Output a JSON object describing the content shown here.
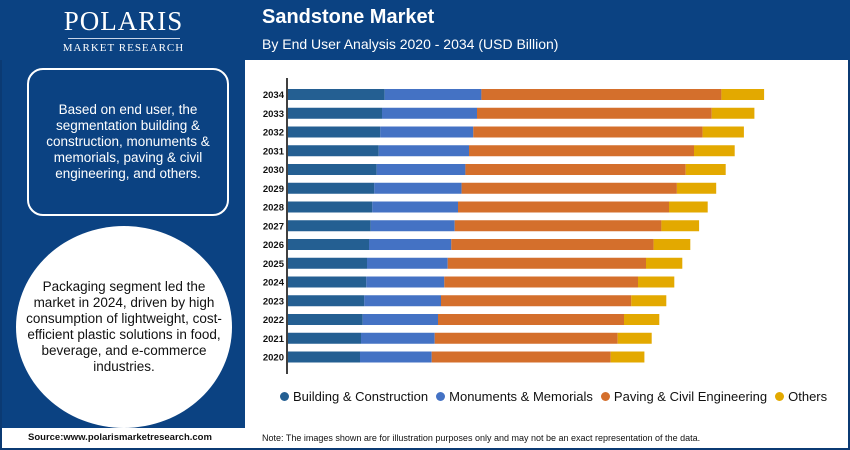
{
  "brand": {
    "name": "POLARIS",
    "sub": "MARKET RESEARCH"
  },
  "header": {
    "title": "Sandstone Market",
    "subtitle": "By End User Analysis 2020 - 2034 (USD Billion)"
  },
  "left": {
    "box_text": "Based on end user, the segmentation building & construction, monuments & memorials, paving & civil engineering, and others.",
    "circle_text": "Packaging segment led the market in 2024, driven by high consumption of lightweight, cost-efficient plastic solutions in food, beverage, and e-commerce industries."
  },
  "footer": {
    "source": "Source:www.polarismarketresearch.com",
    "note": "Note: The images shown are for illustration purposes only and may not be an exact representation of the data."
  },
  "chart_data": {
    "type": "bar",
    "orientation": "horizontal",
    "stacked": true,
    "title": "Sandstone Market",
    "subtitle": "By End User Analysis 2020 - 2034 (USD Billion)",
    "categories": [
      "2034",
      "2033",
      "2032",
      "2031",
      "2030",
      "2029",
      "2028",
      "2027",
      "2026",
      "2025",
      "2024",
      "2023",
      "2022",
      "2021",
      "2020"
    ],
    "series": [
      {
        "name": "Building & Construction",
        "color": "#245f92",
        "values": [
          9.67,
          9.4,
          9.23,
          9.07,
          8.87,
          8.63,
          8.43,
          8.27,
          8.1,
          7.9,
          7.83,
          7.63,
          7.47,
          7.3,
          7.2
        ]
      },
      {
        "name": "Monuments & Memorials",
        "color": "#4472c4",
        "values": [
          9.67,
          9.5,
          9.3,
          9.03,
          8.87,
          8.73,
          8.57,
          8.4,
          8.23,
          8.07,
          7.8,
          7.67,
          7.53,
          7.37,
          7.17
        ]
      },
      {
        "name": "Paving & Civil Engineering",
        "color": "#d46f2c",
        "values": [
          24.0,
          23.47,
          22.93,
          22.5,
          22.03,
          21.53,
          21.1,
          20.67,
          20.23,
          19.83,
          19.37,
          19.03,
          18.6,
          18.3,
          17.9
        ]
      },
      {
        "name": "Others",
        "color": "#e3a900",
        "values": [
          4.27,
          4.27,
          4.13,
          4.07,
          4.0,
          3.93,
          3.87,
          3.77,
          3.67,
          3.63,
          3.63,
          3.5,
          3.53,
          3.4,
          3.37
        ]
      }
    ],
    "x_axis_visible": false,
    "grid": false,
    "legend_position": "bottom"
  }
}
